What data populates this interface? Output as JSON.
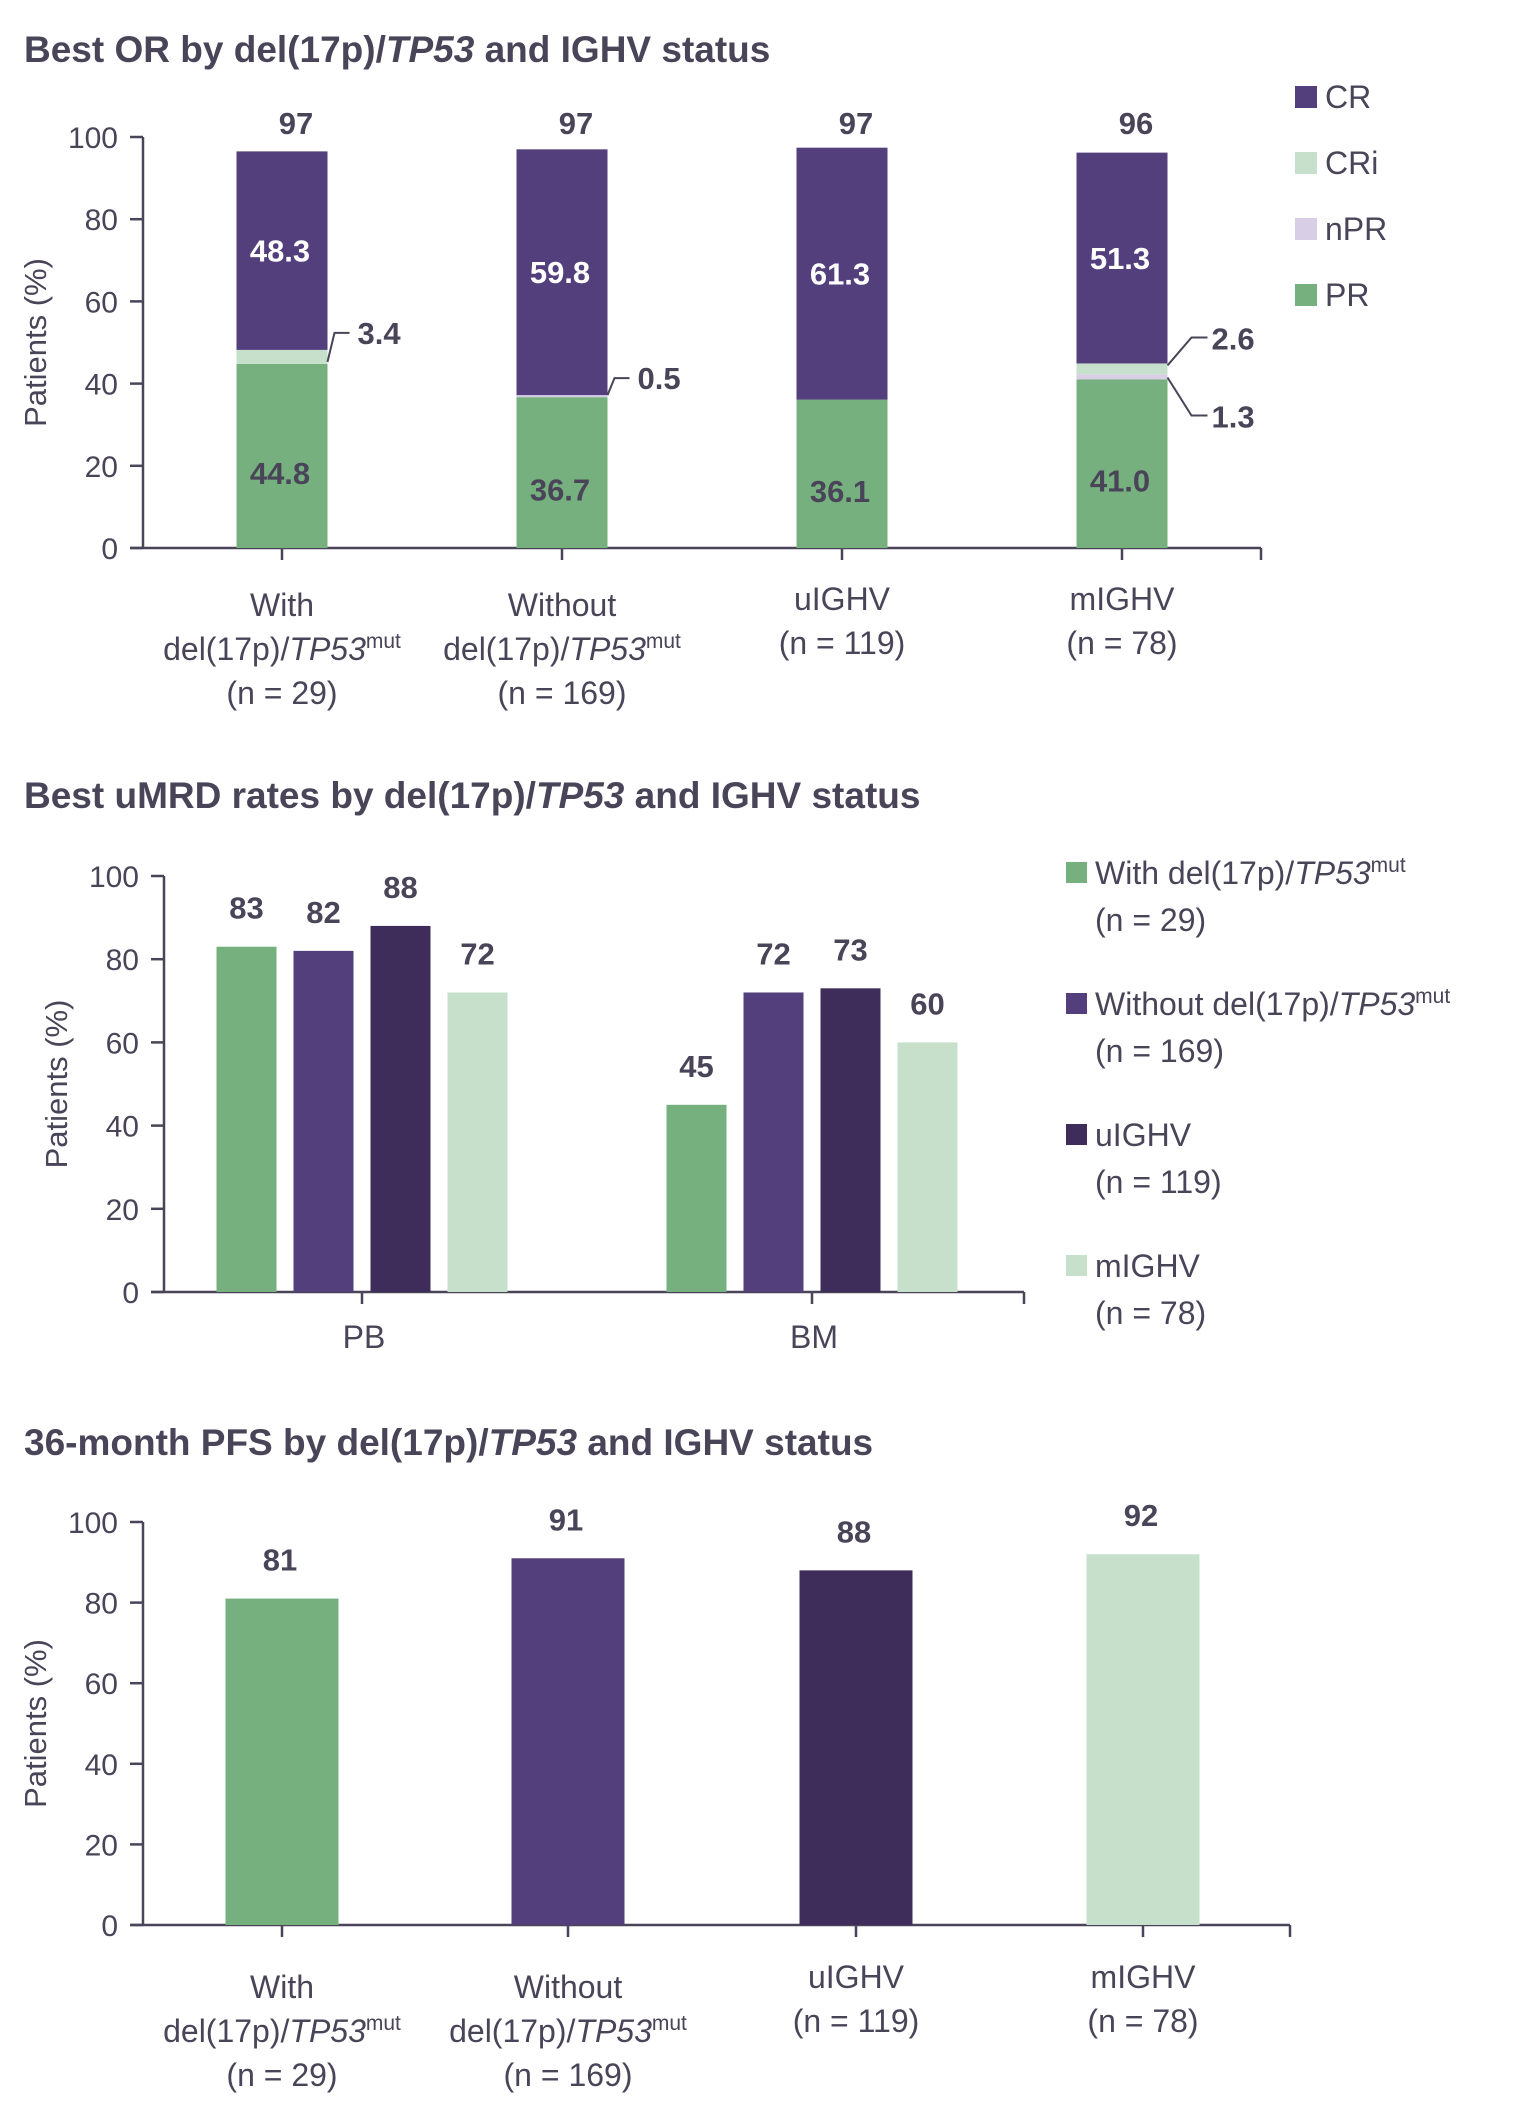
{
  "colors": {
    "text": "#4a4458",
    "green": "#76b07e",
    "purple": "#523f7c",
    "dark_purple": "#3e2d5a",
    "light_green": "#c6e0cb",
    "lavender": "#d8cfe7"
  },
  "chart_data": [
    {
      "type": "bar",
      "stacked": true,
      "title": {
        "pre": "Best OR by del(17p)/",
        "ital": "TP53",
        "post": " and IGHV status"
      },
      "ylabel": "Patients (%)",
      "ylim": [
        0,
        100
      ],
      "yticks": [
        0,
        20,
        40,
        60,
        80,
        100
      ],
      "legend_position": "right",
      "categories": [
        {
          "lines": [
            "With",
            "del(17p)/TP53|mut",
            "(n = 29)"
          ]
        },
        {
          "lines": [
            "Without",
            "del(17p)/TP53|mut",
            "(n = 169)"
          ]
        },
        {
          "lines": [
            "uIGHV",
            "(n = 119)"
          ]
        },
        {
          "lines": [
            "mIGHV",
            "(n = 78)"
          ]
        }
      ],
      "series": [
        {
          "name": "PR",
          "color": "#76b07e",
          "values": [
            44.8,
            36.7,
            36.1,
            41.0
          ],
          "labels": [
            "44.8",
            "36.7",
            "36.1",
            "41.0"
          ]
        },
        {
          "name": "nPR",
          "color": "#d8cfe7",
          "values": [
            0,
            0.5,
            0,
            1.3
          ],
          "labels": [
            "",
            "0.5",
            "",
            "1.3"
          ]
        },
        {
          "name": "CRi",
          "color": "#c6e0cb",
          "values": [
            3.4,
            0,
            0,
            2.6
          ],
          "labels": [
            "3.4",
            "",
            "",
            "2.6"
          ]
        },
        {
          "name": "CR",
          "color": "#523f7c",
          "values": [
            48.3,
            59.8,
            61.3,
            51.3
          ],
          "labels": [
            "48.3",
            "59.8",
            "61.3",
            "51.3"
          ]
        }
      ],
      "legend": [
        "CR",
        "CRi",
        "nPR",
        "PR"
      ],
      "totals": [
        "97",
        "97",
        "97",
        "96"
      ]
    },
    {
      "type": "bar",
      "grouped": true,
      "title": {
        "pre": "Best uMRD rates by del(17p)/",
        "ital": "TP53",
        "post": " and IGHV status"
      },
      "ylabel": "Patients (%)",
      "ylim": [
        0,
        100
      ],
      "yticks": [
        0,
        20,
        40,
        60,
        80,
        100
      ],
      "legend_position": "right",
      "categories": [
        "PB",
        "BM"
      ],
      "series": [
        {
          "name": "With del(17p)/TP53|mut",
          "sub": "(n = 29)",
          "color": "#76b07e",
          "values": [
            83,
            45
          ]
        },
        {
          "name": "Without del(17p)/TP53|mut",
          "sub": "(n = 169)",
          "color": "#523f7c",
          "values": [
            82,
            72
          ]
        },
        {
          "name": "uIGHV",
          "sub": "(n = 119)",
          "color": "#3e2d5a",
          "values": [
            88,
            73
          ]
        },
        {
          "name": "mIGHV",
          "sub": "(n = 78)",
          "color": "#c6e0cb",
          "values": [
            72,
            60
          ]
        }
      ]
    },
    {
      "type": "bar",
      "title": {
        "pre": "36-month PFS by del(17p)/",
        "ital": "TP53",
        "post": " and IGHV status"
      },
      "ylabel": "Patients (%)",
      "ylim": [
        0,
        100
      ],
      "yticks": [
        0,
        20,
        40,
        60,
        80,
        100
      ],
      "categories": [
        {
          "lines": [
            "With",
            "del(17p)/TP53|mut",
            "(n = 29)"
          ]
        },
        {
          "lines": [
            "Without",
            "del(17p)/TP53|mut",
            "(n = 169)"
          ]
        },
        {
          "lines": [
            "uIGHV",
            "(n = 119)"
          ]
        },
        {
          "lines": [
            "mIGHV",
            "(n = 78)"
          ]
        }
      ],
      "values": [
        81,
        91,
        88,
        92
      ],
      "colors": [
        "#76b07e",
        "#523f7c",
        "#3e2d5a",
        "#c6e0cb"
      ]
    }
  ]
}
